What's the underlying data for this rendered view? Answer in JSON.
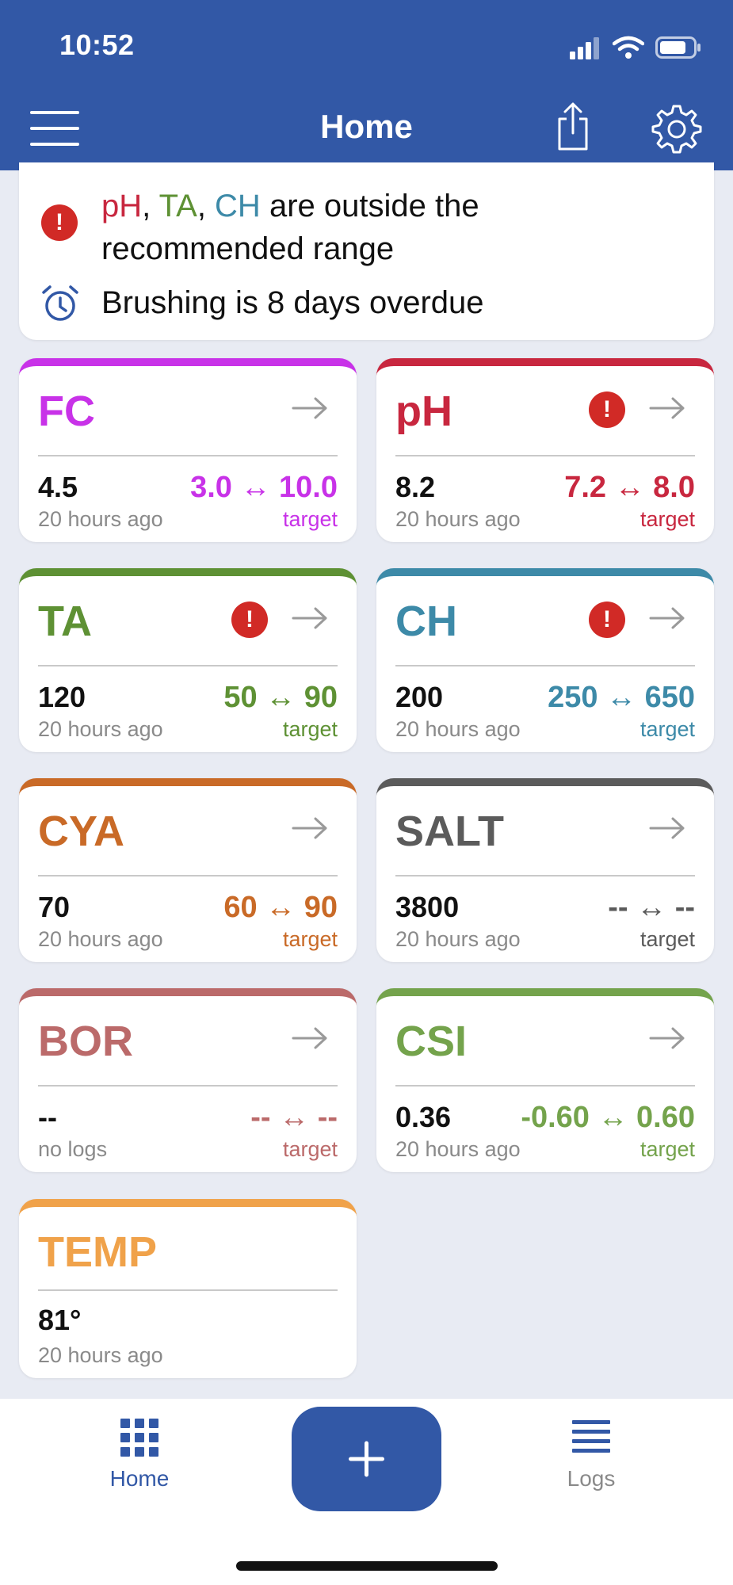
{
  "status_bar": {
    "time": "10:52"
  },
  "nav": {
    "title": "Home"
  },
  "alert": {
    "out_of_range_params": [
      {
        "text": "pH",
        "color": "#c8273f"
      },
      {
        "text": "TA",
        "color": "#5e9134"
      },
      {
        "text": "CH",
        "color": "#3d8aa8"
      }
    ],
    "out_of_range_suffix": " are outside the recommended range",
    "overdue_text": "Brushing is 8 days overdue"
  },
  "cards": [
    {
      "name": "FC",
      "color": "#c832e8",
      "value": "4.5",
      "ago": "20 hours ago",
      "range": "3.0 ↔ 10.0",
      "target_label": "target",
      "warning": false
    },
    {
      "name": "pH",
      "color": "#c8273f",
      "value": "8.2",
      "ago": "20 hours ago",
      "range": "7.2 ↔ 8.0",
      "target_label": "target",
      "warning": true
    },
    {
      "name": "TA",
      "color": "#5e9134",
      "value": "120",
      "ago": "20 hours ago",
      "range": "50 ↔ 90",
      "target_label": "target",
      "warning": true
    },
    {
      "name": "CH",
      "color": "#3d8aa8",
      "value": "200",
      "ago": "20 hours ago",
      "range": "250 ↔ 650",
      "target_label": "target",
      "warning": true
    },
    {
      "name": "CYA",
      "color": "#c96a27",
      "value": "70",
      "ago": "20 hours ago",
      "range": "60 ↔ 90",
      "target_label": "target",
      "warning": false
    },
    {
      "name": "SALT",
      "color": "#5b5b5b",
      "value": "3800",
      "ago": "20 hours ago",
      "range": "-- ↔ --",
      "target_label": "target",
      "warning": false
    },
    {
      "name": "BOR",
      "color": "#bb6a6a",
      "value": "--",
      "ago": "no logs",
      "range": "-- ↔ --",
      "target_label": "target",
      "warning": false
    },
    {
      "name": "CSI",
      "color": "#74a34c",
      "value": "0.36",
      "ago": "20 hours ago",
      "range": "-0.60 ↔ 0.60",
      "target_label": "target",
      "warning": false
    }
  ],
  "temp_card": {
    "name": "TEMP",
    "color": "#f0a24a",
    "value": "81°",
    "ago": "20 hours ago"
  },
  "tabbar": {
    "home_label": "Home",
    "logs_label": "Logs",
    "active_color": "#3258a6",
    "inactive_color": "#8a8a8a"
  },
  "colors": {
    "brand": "#3258a6",
    "warning": "#d12a26"
  }
}
